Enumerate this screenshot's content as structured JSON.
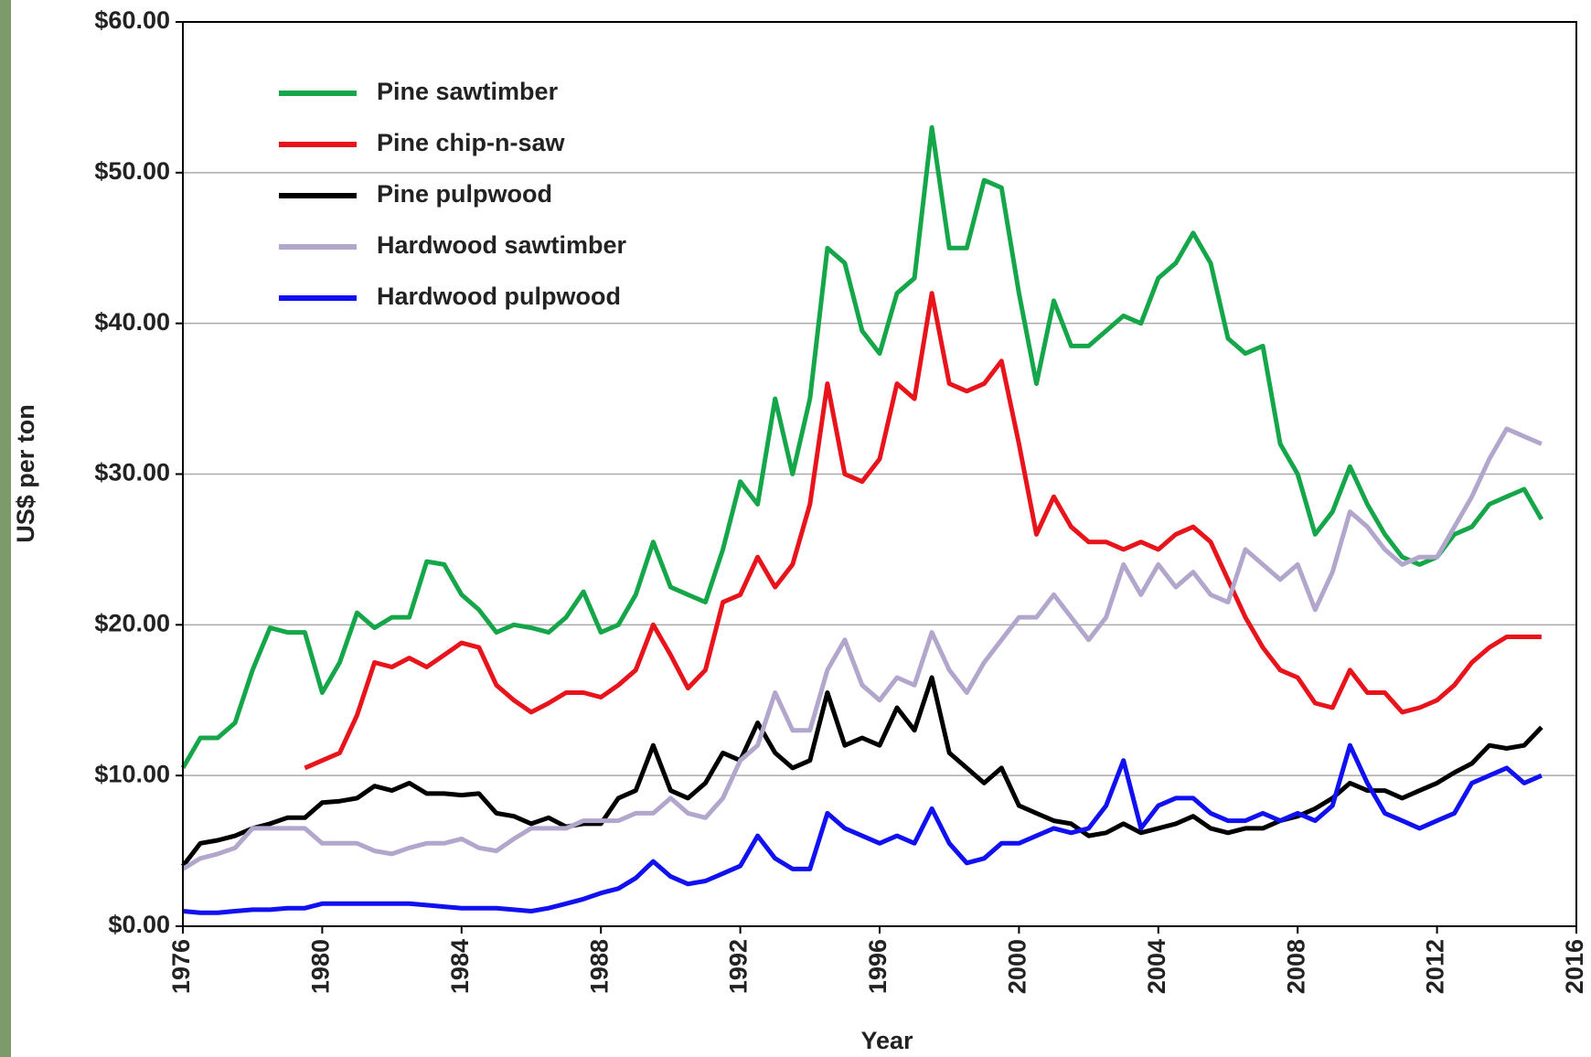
{
  "chart_data": {
    "type": "line",
    "x_label": "Year",
    "y_label": "US$ per ton",
    "x": [
      1976,
      1976.5,
      1977,
      1977.5,
      1978,
      1978.5,
      1979,
      1979.5,
      1980,
      1980.5,
      1981,
      1981.5,
      1982,
      1982.5,
      1983,
      1983.5,
      1984,
      1984.5,
      1985,
      1985.5,
      1986,
      1986.5,
      1987,
      1987.5,
      1988,
      1988.5,
      1989,
      1989.5,
      1990,
      1990.5,
      1991,
      1991.5,
      1992,
      1992.5,
      1993,
      1993.5,
      1994,
      1994.5,
      1995,
      1995.5,
      1996,
      1996.5,
      1997,
      1997.5,
      1998,
      1998.5,
      1999,
      1999.5,
      2000,
      2000.5,
      2001,
      2001.5,
      2002,
      2002.5,
      2003,
      2003.5,
      2004,
      2004.5,
      2005,
      2005.5,
      2006,
      2006.5,
      2007,
      2007.5,
      2008,
      2008.5,
      2009,
      2009.5,
      2010,
      2010.5,
      2011,
      2011.5,
      2012,
      2012.5,
      2013,
      2013.5,
      2014,
      2014.5,
      2015
    ],
    "series": [
      {
        "name": "Pine sawtimber",
        "color": "#16a64a",
        "values": [
          10.5,
          12.5,
          12.5,
          13.5,
          17,
          19.8,
          19.5,
          19.5,
          15.5,
          17.5,
          20.8,
          19.8,
          20.5,
          20.5,
          24.2,
          24,
          22,
          21,
          19.5,
          20,
          19.8,
          19.5,
          20.5,
          22.2,
          19.5,
          20,
          22,
          25.5,
          22.5,
          22,
          21.5,
          25,
          29.5,
          28,
          35,
          30,
          35,
          45,
          44,
          39.5,
          38,
          42,
          43,
          53,
          45,
          45,
          49.5,
          49,
          42,
          36,
          41.5,
          38.5,
          38.5,
          39.5,
          40.5,
          40,
          43,
          44,
          46,
          44,
          39,
          38,
          38.5,
          32,
          30,
          26,
          27.5,
          30.5,
          28,
          26,
          24.5,
          24,
          24.5,
          26,
          26.5,
          28,
          28.5,
          29,
          27
        ]
      },
      {
        "name": "Pine chip-n-saw",
        "color": "#e8141b",
        "values": [
          null,
          null,
          null,
          null,
          null,
          null,
          null,
          10.5,
          11,
          11.5,
          14,
          17.5,
          17.2,
          17.8,
          17.2,
          18,
          18.8,
          18.5,
          16,
          15,
          14.2,
          14.8,
          15.5,
          15.5,
          15.2,
          16,
          17,
          20,
          18,
          15.8,
          17,
          21.5,
          22,
          24.5,
          22.5,
          24,
          28,
          36,
          30,
          29.5,
          31,
          36,
          35,
          42,
          36,
          35.5,
          36,
          37.5,
          32,
          26,
          28.5,
          26.5,
          25.5,
          25.5,
          25,
          25.5,
          25,
          26,
          26.5,
          25.5,
          23,
          20.5,
          18.5,
          17,
          16.5,
          14.8,
          14.5,
          17,
          15.5,
          15.5,
          14.2,
          14.5,
          15,
          16,
          17.5,
          18.5,
          19.2,
          19.2,
          19.2
        ]
      },
      {
        "name": "Pine pulpwood",
        "color": "#000000",
        "values": [
          4,
          5.5,
          5.7,
          6,
          6.5,
          6.8,
          7.2,
          7.2,
          8.2,
          8.3,
          8.5,
          9.3,
          9,
          9.5,
          8.8,
          8.8,
          8.7,
          8.8,
          7.5,
          7.3,
          6.8,
          7.2,
          6.6,
          6.8,
          6.8,
          8.5,
          9,
          12,
          9,
          8.5,
          9.5,
          11.5,
          11,
          13.5,
          11.5,
          10.5,
          11,
          15.5,
          12,
          12.5,
          12,
          14.5,
          13,
          16.5,
          11.5,
          10.5,
          9.5,
          10.5,
          8,
          7.5,
          7,
          6.8,
          6,
          6.2,
          6.8,
          6.2,
          6.5,
          6.8,
          7.3,
          6.5,
          6.2,
          6.5,
          6.5,
          7,
          7.3,
          7.8,
          8.5,
          9.5,
          9,
          9,
          8.5,
          9,
          9.5,
          10.2,
          10.8,
          12,
          11.8,
          12,
          13.2
        ]
      },
      {
        "name": "Hardwood sawtimber",
        "color": "#b3a6cc",
        "values": [
          3.8,
          4.5,
          4.8,
          5.2,
          6.5,
          6.5,
          6.5,
          6.5,
          5.5,
          5.5,
          5.5,
          5,
          4.8,
          5.2,
          5.5,
          5.5,
          5.8,
          5.2,
          5,
          5.8,
          6.5,
          6.5,
          6.5,
          7,
          7,
          7,
          7.5,
          7.5,
          8.5,
          7.5,
          7.2,
          8.5,
          11,
          12,
          15.5,
          13,
          13,
          17,
          19,
          16,
          15,
          16.5,
          16,
          19.5,
          17,
          15.5,
          17.5,
          19,
          20.5,
          20.5,
          22,
          20.5,
          19,
          20.5,
          24,
          22,
          24,
          22.5,
          23.5,
          22,
          21.5,
          25,
          24,
          23,
          24,
          21,
          23.5,
          27.5,
          26.5,
          25,
          24,
          24.5,
          24.5,
          26.5,
          28.5,
          31,
          33,
          32.5,
          32
        ]
      },
      {
        "name": "Hardwood pulpwood",
        "color": "#1010f0",
        "values": [
          1,
          0.9,
          0.9,
          1,
          1.1,
          1.1,
          1.2,
          1.2,
          1.5,
          1.5,
          1.5,
          1.5,
          1.5,
          1.5,
          1.4,
          1.3,
          1.2,
          1.2,
          1.2,
          1.1,
          1,
          1.2,
          1.5,
          1.8,
          2.2,
          2.5,
          3.2,
          4.3,
          3.3,
          2.8,
          3,
          3.5,
          4,
          6,
          4.5,
          3.8,
          3.8,
          7.5,
          6.5,
          6,
          5.5,
          6,
          5.5,
          7.8,
          5.5,
          4.2,
          4.5,
          5.5,
          5.5,
          6,
          6.5,
          6.2,
          6.5,
          8,
          11,
          6.5,
          8,
          8.5,
          8.5,
          7.5,
          7,
          7,
          7.5,
          7,
          7.5,
          7,
          8,
          12,
          9.5,
          7.5,
          7,
          6.5,
          7,
          7.5,
          9.5,
          10,
          10.5,
          9.5,
          10
        ]
      }
    ],
    "xlim": [
      1976,
      2016
    ],
    "xticks": [
      1976,
      1980,
      1984,
      1988,
      1992,
      1996,
      2000,
      2004,
      2008,
      2012,
      2016
    ],
    "ylim": [
      0,
      60
    ],
    "yticks": [
      {
        "value": 0,
        "label": "$0.00"
      },
      {
        "value": 10,
        "label": "$10.00"
      },
      {
        "value": 20,
        "label": "$20.00"
      },
      {
        "value": 30,
        "label": "$30.00"
      },
      {
        "value": 40,
        "label": "$40.00"
      },
      {
        "value": 50,
        "label": "$50.00"
      },
      {
        "value": 60,
        "label": "$60.00"
      }
    ],
    "grid": true,
    "legend": "upper left"
  }
}
